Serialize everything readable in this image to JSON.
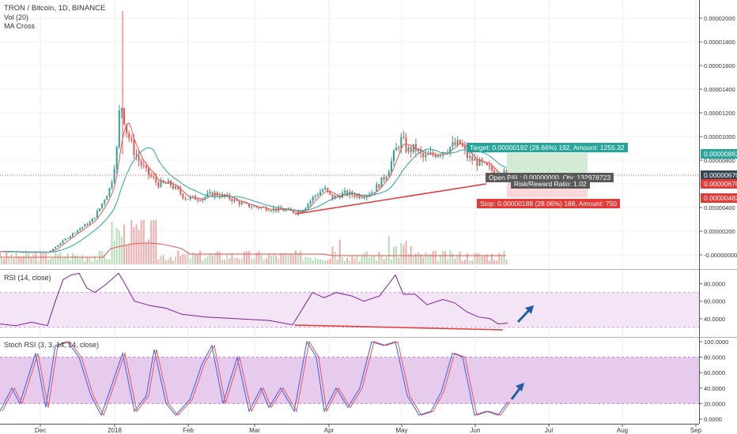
{
  "header": {
    "symbol": "TRON / Bitcoin, 1D, BINANCE",
    "study_vol": "Vol (20)",
    "study_ma": "MA Cross"
  },
  "colors": {
    "up": "#26a69a",
    "down": "#ef5350",
    "ma_fast": "#ef5350",
    "ma_slow": "#26a69a",
    "rsi_line": "#7b1fa2",
    "rsi_band": "#f3e5f5",
    "stoch_k": "#2962ff",
    "stoch_d": "#ef5350",
    "stoch_band": "#e1bee7",
    "trend": "#e53935",
    "arrow": "#1e5fa8",
    "target_zone": "#c8e6c9",
    "stop_zone": "#ffcdd2"
  },
  "price_axis": {
    "ticks": [
      "0.00002000",
      "0.00001800",
      "0.00001600",
      "0.00001400",
      "0.00001200",
      "0.00001000",
      "0.00000800",
      "0.00000600",
      "0.00000400",
      "0.00000200",
      "-0.00000000"
    ],
    "badge_target": "0.00000862",
    "badge_last_1": "0.00000670",
    "badge_last_2": "0.00000670",
    "badge_stop": "0.00000482"
  },
  "position": {
    "target_label": "Target: 0.00000192 (28.66%) 192, Amount: 1255.32",
    "pnl_label": "Open P&L: 0.00000000, Qty: 132978723",
    "rr_label": "Risk/Reward Ratio: 1.02",
    "stop_label": "Stop: 0.00000188 (28.06%) 188, Amount: 750"
  },
  "rsi_panel": {
    "title": "RSI (14, close)",
    "ticks": [
      "80.0000",
      "60.0000",
      "40.0000"
    ],
    "band": [
      30,
      70
    ]
  },
  "stoch_panel": {
    "title": "Stoch RSI (3, 3, 14, 14, close)",
    "ticks": [
      "100.0000",
      "80.0000",
      "60.0000",
      "40.0000",
      "20.0000",
      "0.0000"
    ],
    "band": [
      20,
      80
    ]
  },
  "time_axis": {
    "labels": [
      "Dec",
      "2018",
      "Feb",
      "Mar",
      "Apr",
      "May",
      "Jun",
      "Jul",
      "Aug",
      "Sep"
    ]
  },
  "chart_data": {
    "type": "candlestick",
    "title": "TRON / Bitcoin, 1D, BINANCE",
    "y_unit": "BTC",
    "ylim": [
      -5e-07,
      2.12e-05
    ],
    "x_range": [
      "Nov 2017",
      "Sep 2018"
    ],
    "key_prices": {
      "pre_rally_base": 5e-08,
      "january_peak": 2.06e-05,
      "january_high_close": 1.34e-05,
      "march_low": 3.5e-06,
      "may_high": 1.06e-05,
      "last": 6.7e-06,
      "target": 8.62e-06,
      "stop": 4.82e-06
    },
    "rsi": {
      "ylim": [
        20,
        95
      ],
      "band": [
        30,
        70
      ],
      "last": 35
    },
    "stoch_rsi": {
      "ylim": [
        -5,
        105
      ],
      "band": [
        20,
        80
      ],
      "last": 22
    }
  }
}
